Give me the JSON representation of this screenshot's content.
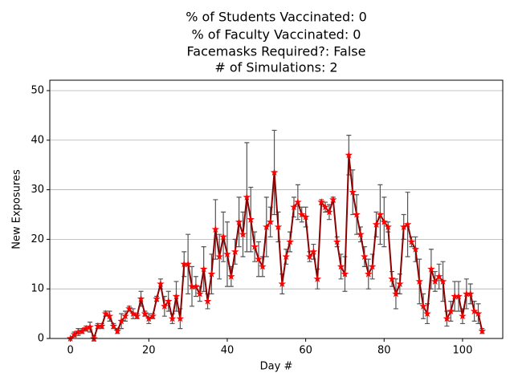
{
  "chart_data": {
    "type": "line",
    "title": [
      "% of Students Vaccinated: 0",
      "% of Faculty Vaccinated: 0",
      "Facemasks Required?: False",
      "# of Simulations: 2"
    ],
    "xlabel": "Day #",
    "ylabel": "New Exposures",
    "x": [
      0,
      1,
      2,
      3,
      4,
      5,
      6,
      7,
      8,
      9,
      10,
      11,
      12,
      13,
      14,
      15,
      16,
      17,
      18,
      19,
      20,
      21,
      22,
      23,
      24,
      25,
      26,
      27,
      28,
      29,
      30,
      31,
      32,
      33,
      34,
      35,
      36,
      37,
      38,
      39,
      40,
      41,
      42,
      43,
      44,
      45,
      46,
      47,
      48,
      49,
      50,
      51,
      52,
      53,
      54,
      55,
      56,
      57,
      58,
      59,
      60,
      61,
      62,
      63,
      64,
      65,
      66,
      67,
      68,
      69,
      70,
      71,
      72,
      73,
      74,
      75,
      76,
      77,
      78,
      79,
      80,
      81,
      82,
      83,
      84,
      85,
      86,
      87,
      88,
      89,
      90,
      91,
      92,
      93,
      94,
      95,
      96,
      97,
      98,
      99,
      100,
      101,
      102,
      103,
      104,
      105
    ],
    "series": [
      {
        "color": "#8b0000",
        "marker_color": "#ff0000",
        "error_color": "#555555",
        "values": [
          0,
          0.8,
          1.3,
          1.5,
          2,
          2.3,
          0,
          2.5,
          2.5,
          5,
          4.5,
          2.5,
          1.5,
          3.5,
          4.5,
          6,
          5,
          4.5,
          8,
          5,
          4,
          4.5,
          8,
          11,
          6.5,
          7.5,
          4,
          8.5,
          4,
          15,
          15,
          10.5,
          10.5,
          9,
          14,
          7.5,
          13,
          22,
          16.5,
          20.5,
          17,
          12.5,
          17.5,
          23.5,
          21,
          28.5,
          24,
          18.5,
          16,
          14.5,
          22.5,
          23.5,
          33.5,
          22.5,
          11,
          16.5,
          19.5,
          26.5,
          27.5,
          25,
          24.5,
          16.5,
          17.5,
          12,
          27.5,
          26.5,
          25.5,
          28,
          19.5,
          14.5,
          13,
          37,
          29.5,
          25,
          21,
          16.5,
          13,
          14.5,
          23,
          25,
          23.5,
          22.5,
          12,
          9,
          11,
          22.5,
          23,
          19.5,
          18,
          11.5,
          6.5,
          5,
          14,
          11.5,
          12.5,
          11.5,
          4,
          5.5,
          8.5,
          8.5,
          4.5,
          9,
          9,
          5.5,
          5,
          1.5
        ],
        "errors": [
          0,
          0.5,
          0.7,
          0.5,
          0.5,
          1,
          0.5,
          0.5,
          0.5,
          0.5,
          1,
          0.5,
          0.5,
          1.5,
          1,
          0.5,
          1,
          0.5,
          1.5,
          0.5,
          1,
          0.5,
          0.5,
          1,
          2,
          2,
          1,
          3,
          2,
          2.5,
          6,
          4,
          2,
          1.5,
          4.5,
          1.5,
          4,
          6,
          4.5,
          5,
          6.5,
          2,
          2.5,
          5,
          4.5,
          11,
          6.5,
          3,
          3.5,
          2,
          6,
          3,
          8.5,
          3,
          2,
          1.5,
          2,
          2,
          3.5,
          1.5,
          2,
          1,
          1.5,
          2,
          0.5,
          1,
          1.5,
          0.5,
          1,
          2.5,
          3.5,
          4,
          4.5,
          4,
          1.5,
          2,
          3,
          2.5,
          2.5,
          6,
          5,
          1,
          1.5,
          3,
          2,
          2.5,
          6.5,
          1,
          2.5,
          4.5,
          2.5,
          2,
          4,
          2,
          2.5,
          4,
          1.5,
          2,
          3,
          3,
          1.5,
          3,
          2,
          2,
          2,
          0.5
        ]
      }
    ],
    "xlim": [
      -5.25,
      110.25
    ],
    "ylim": [
      0,
      52.1
    ],
    "xticks": [
      0,
      20,
      40,
      60,
      80,
      100
    ],
    "yticks": [
      0,
      10,
      20,
      30,
      40,
      50
    ],
    "grid": true
  }
}
